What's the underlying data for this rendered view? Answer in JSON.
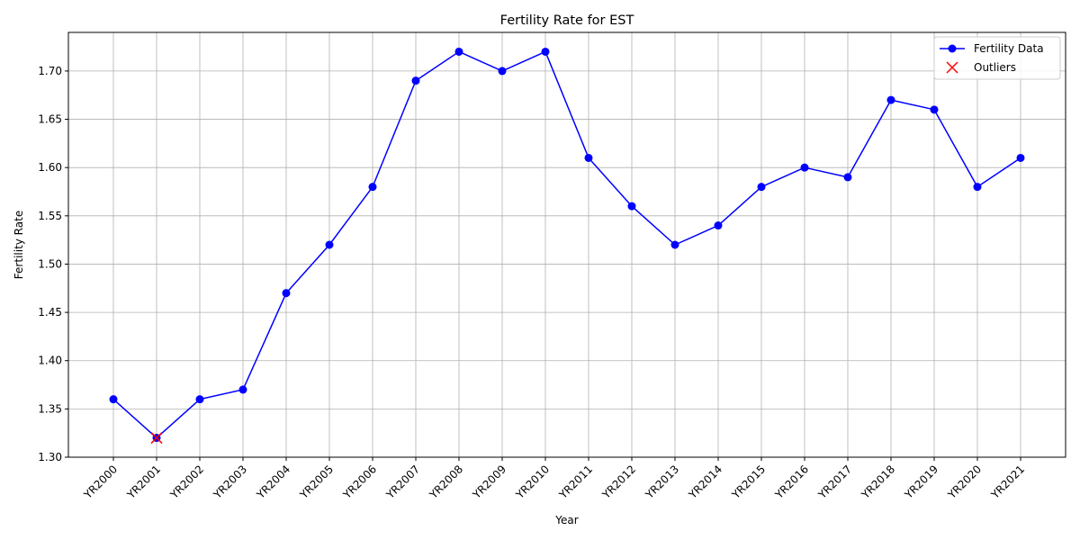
{
  "chart_data": {
    "type": "line",
    "title": "Fertility Rate for EST",
    "xlabel": "Year",
    "ylabel": "Fertility Rate",
    "categories": [
      "YR2000",
      "YR2001",
      "YR2002",
      "YR2003",
      "YR2004",
      "YR2005",
      "YR2006",
      "YR2007",
      "YR2008",
      "YR2009",
      "YR2010",
      "YR2011",
      "YR2012",
      "YR2013",
      "YR2014",
      "YR2015",
      "YR2016",
      "YR2017",
      "YR2018",
      "YR2019",
      "YR2020",
      "YR2021"
    ],
    "series": [
      {
        "name": "Fertility Data",
        "color": "#0000ff",
        "marker": "circle",
        "values": [
          1.36,
          1.32,
          1.36,
          1.37,
          1.47,
          1.52,
          1.58,
          1.69,
          1.72,
          1.7,
          1.72,
          1.61,
          1.56,
          1.52,
          1.54,
          1.58,
          1.6,
          1.59,
          1.67,
          1.66,
          1.58,
          1.61
        ]
      },
      {
        "name": "Outliers",
        "color": "#ff0000",
        "marker": "x",
        "points": [
          {
            "x": "YR2001",
            "y": 1.32
          }
        ]
      }
    ],
    "ylim": [
      1.3,
      1.74
    ],
    "yticks": [
      1.3,
      1.35,
      1.4,
      1.45,
      1.5,
      1.55,
      1.6,
      1.65,
      1.7
    ],
    "ytick_labels": [
      "1.30",
      "1.35",
      "1.40",
      "1.45",
      "1.50",
      "1.55",
      "1.60",
      "1.65",
      "1.70"
    ],
    "grid": true,
    "legend_position": "upper-right"
  }
}
